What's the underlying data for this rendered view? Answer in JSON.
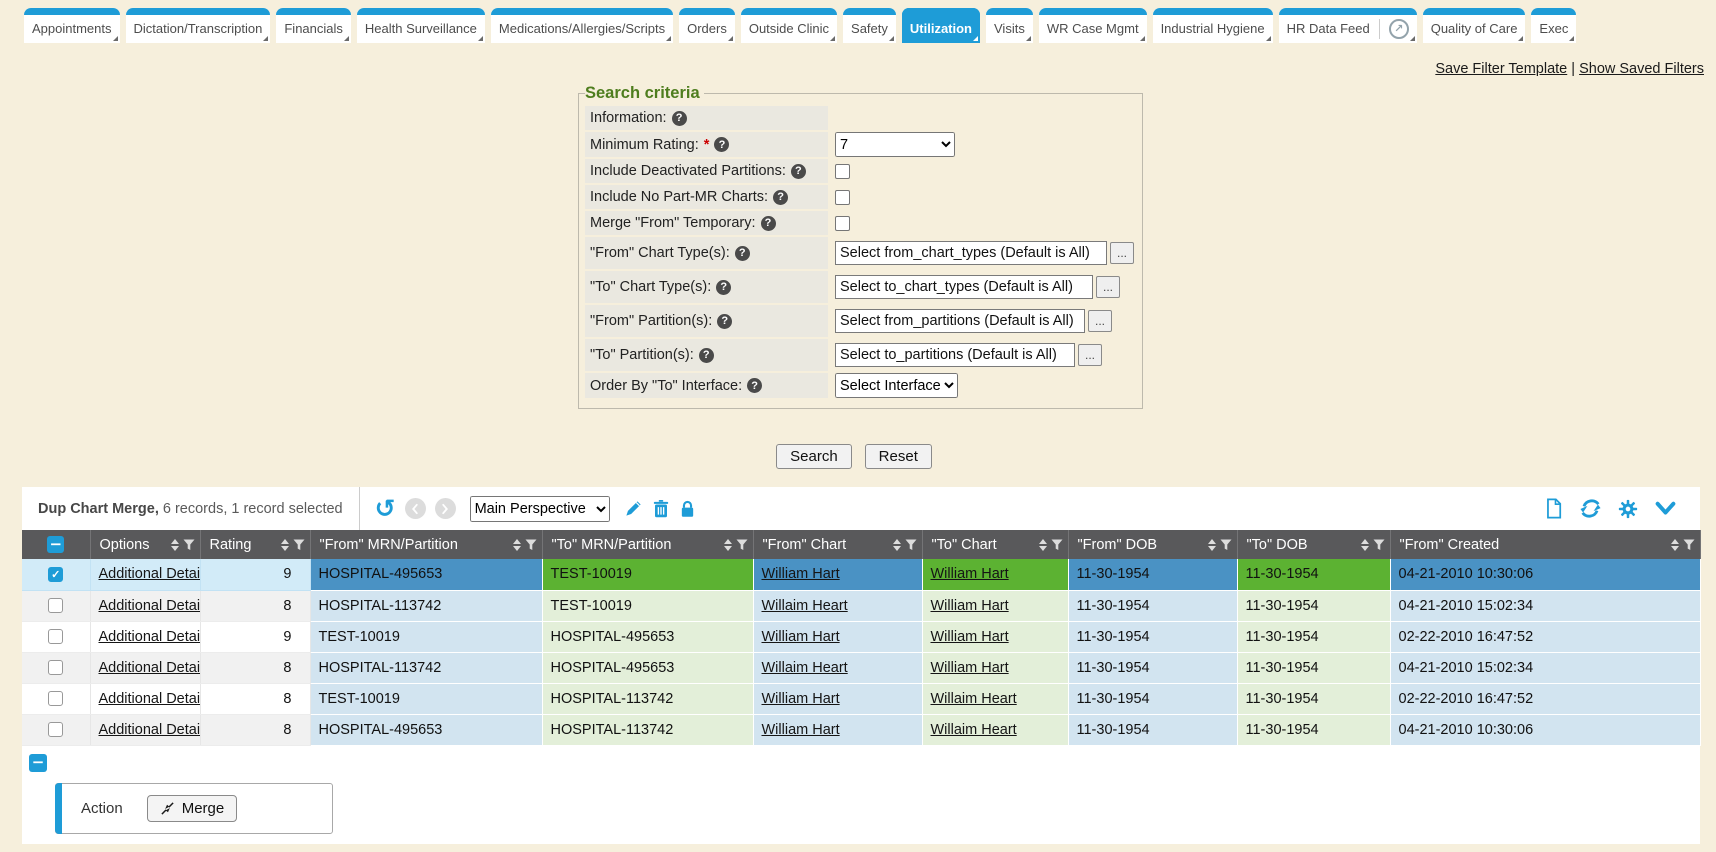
{
  "colors": {
    "accent": "#1e9cd7",
    "page_bg": "#f6efdc",
    "header_bg": "#59595b",
    "from_light": "#d2e4f0",
    "to_light": "#e3efd9",
    "from_dark": "#4a92c4",
    "to_dark": "#5cb232",
    "selected_light": "#d2ebf8",
    "label_bg": "#eae8e0",
    "legend_green": "#4e7d1e"
  },
  "tabs": [
    {
      "label": "Appointments",
      "active": false
    },
    {
      "label": "Dictation/Transcription",
      "active": false
    },
    {
      "label": "Financials",
      "active": false
    },
    {
      "label": "Health Surveillance",
      "active": false
    },
    {
      "label": "Medications/Allergies/Scripts",
      "active": false
    },
    {
      "label": "Orders",
      "active": false
    },
    {
      "label": "Outside Clinic",
      "active": false
    },
    {
      "label": "Safety",
      "active": false
    },
    {
      "label": "Utilization",
      "active": true
    },
    {
      "label": "Visits",
      "active": false
    },
    {
      "label": "WR Case Mgmt",
      "active": false
    },
    {
      "label": "Industrial Hygiene",
      "active": false
    },
    {
      "label": "HR Data Feed",
      "active": false,
      "trailing_icon": "circle-arrow-icon"
    },
    {
      "label": "Quality of Care",
      "active": false
    },
    {
      "label": "Exec",
      "active": false
    }
  ],
  "filter_links": {
    "save": "Save Filter Template",
    "sep": " | ",
    "show": "Show Saved Filters"
  },
  "search": {
    "legend": "Search criteria",
    "fields": [
      {
        "label": "Information:",
        "help": true,
        "control": "none"
      },
      {
        "label": "Minimum Rating:",
        "required": true,
        "help": true,
        "control": "select",
        "value": "7"
      },
      {
        "label": "Include Deactivated Partitions:",
        "help": true,
        "control": "checkbox",
        "checked": false
      },
      {
        "label": "Include No Part-MR Charts:",
        "help": true,
        "control": "checkbox",
        "checked": false
      },
      {
        "label": "Merge \"From\" Temporary:",
        "help": true,
        "control": "checkbox",
        "checked": false
      },
      {
        "label": "\"From\" Chart Type(s):",
        "help": true,
        "control": "picker",
        "value": "Select from_chart_types (Default is All)",
        "button": "..."
      },
      {
        "label": "\"To\" Chart Type(s):",
        "help": true,
        "control": "picker",
        "value": "Select to_chart_types (Default is All)",
        "button": "..."
      },
      {
        "label": "\"From\" Partition(s):",
        "help": true,
        "control": "picker",
        "value": "Select from_partitions (Default is All)",
        "button": "..."
      },
      {
        "label": "\"To\" Partition(s):",
        "help": true,
        "control": "picker",
        "value": "Select to_partitions (Default is All)",
        "button": "..."
      },
      {
        "label": "Order By \"To\" Interface:",
        "help": true,
        "control": "select",
        "value": "Select Interface"
      }
    ],
    "buttons": {
      "search": "Search",
      "reset": "Reset"
    }
  },
  "grid": {
    "title": "Dup Chart Merge,",
    "record_summary": "6 records, 1 record selected",
    "perspective": "Main Perspective",
    "columns": [
      "Options",
      "Rating",
      "\"From\" MRN/Partition",
      "\"To\" MRN/Partition",
      "\"From\" Chart",
      "\"To\" Chart",
      "\"From\" DOB",
      "\"To\" DOB",
      "\"From\" Created"
    ],
    "options_link_label": "Additional Details",
    "rows": [
      {
        "selected": true,
        "rating": "9",
        "from_mrn": "HOSPITAL-495653",
        "to_mrn": "TEST-10019",
        "from_chart": "William Hart",
        "to_chart": "William Hart",
        "from_dob": "11-30-1954",
        "to_dob": "11-30-1954",
        "from_created": "04-21-2010 10:30:06"
      },
      {
        "selected": false,
        "rating": "8",
        "from_mrn": "HOSPITAL-113742",
        "to_mrn": "TEST-10019",
        "from_chart": "Willaim Heart",
        "to_chart": "William Hart",
        "from_dob": "11-30-1954",
        "to_dob": "11-30-1954",
        "from_created": "04-21-2010 15:02:34"
      },
      {
        "selected": false,
        "rating": "9",
        "from_mrn": "TEST-10019",
        "to_mrn": "HOSPITAL-495653",
        "from_chart": "William Hart",
        "to_chart": "William Hart",
        "from_dob": "11-30-1954",
        "to_dob": "11-30-1954",
        "from_created": "02-22-2010 16:47:52"
      },
      {
        "selected": false,
        "rating": "8",
        "from_mrn": "HOSPITAL-113742",
        "to_mrn": "HOSPITAL-495653",
        "from_chart": "Willaim Heart",
        "to_chart": "William Hart",
        "from_dob": "11-30-1954",
        "to_dob": "11-30-1954",
        "from_created": "04-21-2010 15:02:34"
      },
      {
        "selected": false,
        "rating": "8",
        "from_mrn": "TEST-10019",
        "to_mrn": "HOSPITAL-113742",
        "from_chart": "William Hart",
        "to_chart": "Willaim Heart",
        "from_dob": "11-30-1954",
        "to_dob": "11-30-1954",
        "from_created": "02-22-2010 16:47:52"
      },
      {
        "selected": false,
        "rating": "8",
        "from_mrn": "HOSPITAL-495653",
        "to_mrn": "HOSPITAL-113742",
        "from_chart": "William Hart",
        "to_chart": "Willaim Heart",
        "from_dob": "11-30-1954",
        "to_dob": "11-30-1954",
        "from_created": "04-21-2010 10:30:06"
      }
    ],
    "footer": {
      "action_label": "Action",
      "merge_label": "Merge"
    }
  }
}
